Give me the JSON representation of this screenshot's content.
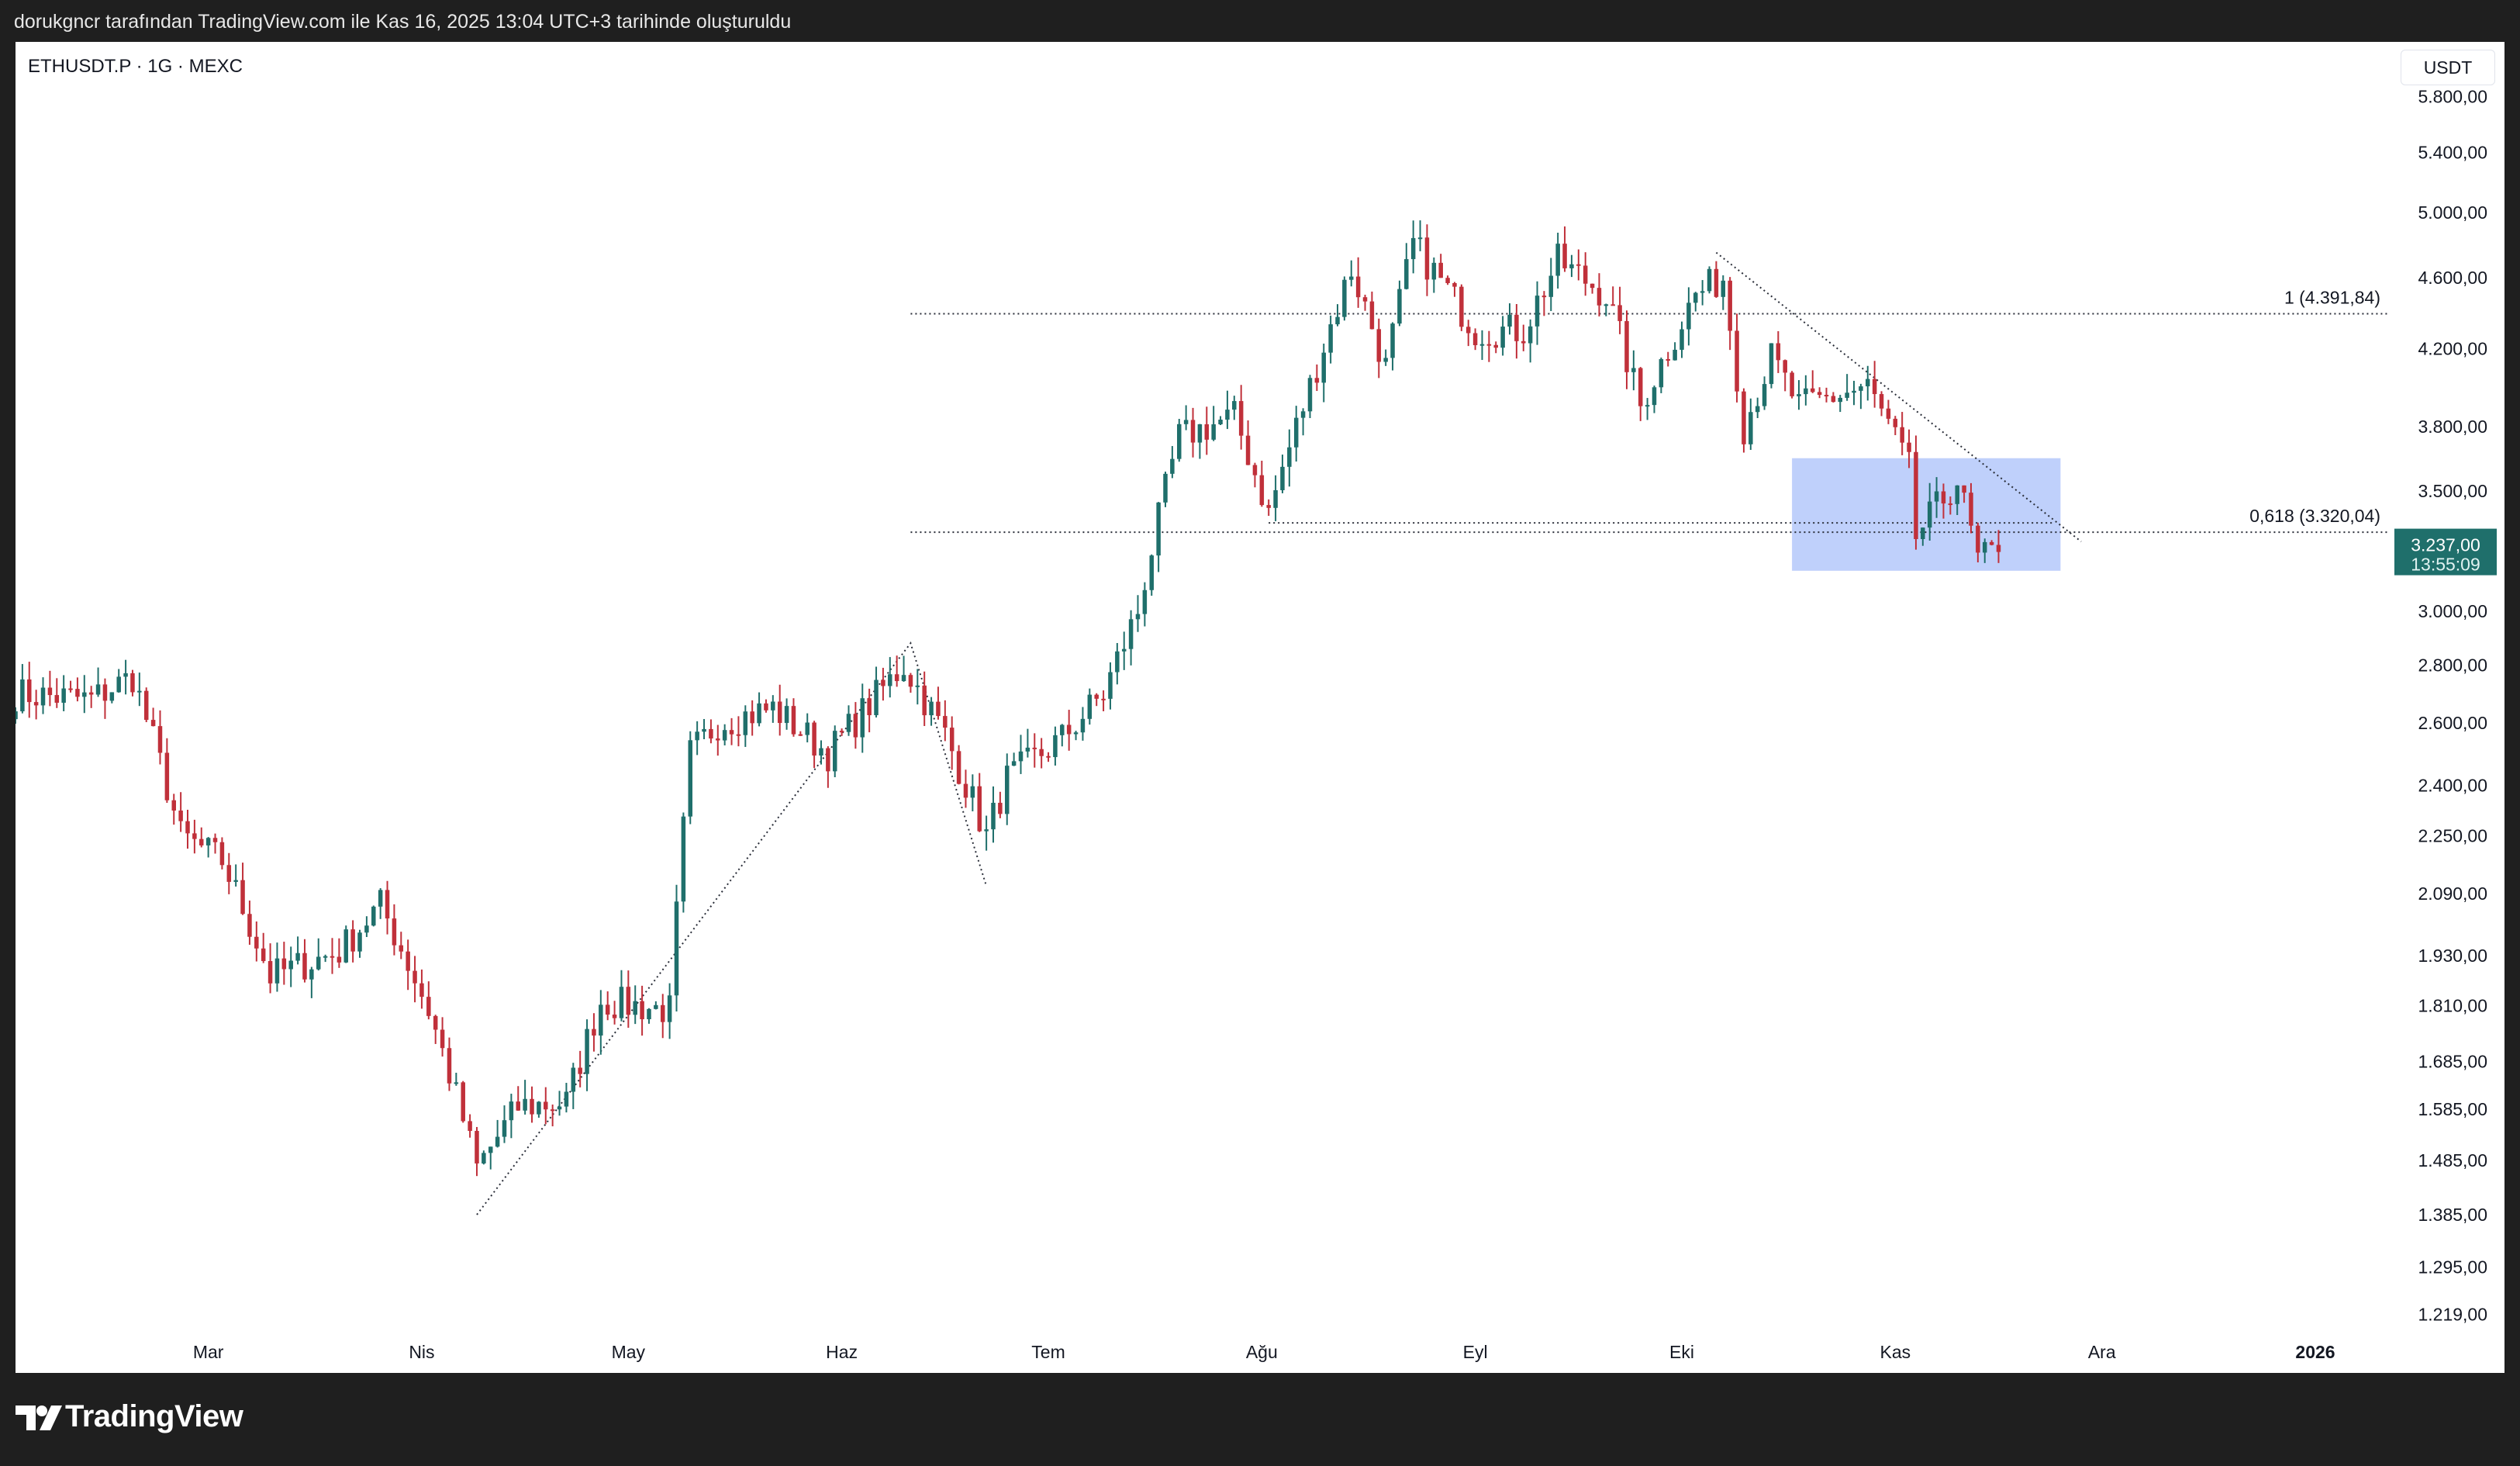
{
  "header": {
    "attribution": "dorukgncr tarafından TradingView.com ile Kas 16, 2025 13:04 UTC+3 tarihinde oluşturuldu"
  },
  "symbol": {
    "label": "ETHUSDT.P · 1G · MEXC"
  },
  "currency": {
    "label": "USDT"
  },
  "brand": {
    "name": "TradingView"
  },
  "colors": {
    "up": "#1f6f6b",
    "down": "#c0303a",
    "zone": "#bccdfb",
    "price_tag": "#1f6f6b",
    "grid_text": "#131722"
  },
  "chart_data": {
    "type": "candlestick",
    "scale": "log",
    "ylim": [
      1180,
      6000
    ],
    "xlim": [
      "2025-02-01",
      "2026-01-01"
    ],
    "x_tick_labels": [
      {
        "label": "Mar",
        "date": "2025-03-01"
      },
      {
        "label": "Nis",
        "date": "2025-04-01"
      },
      {
        "label": "May",
        "date": "2025-05-01"
      },
      {
        "label": "Haz",
        "date": "2025-06-01"
      },
      {
        "label": "Tem",
        "date": "2025-07-01"
      },
      {
        "label": "Ağu",
        "date": "2025-08-01"
      },
      {
        "label": "Eyl",
        "date": "2025-09-01"
      },
      {
        "label": "Eki",
        "date": "2025-10-01"
      },
      {
        "label": "Kas",
        "date": "2025-11-01"
      },
      {
        "label": "Ara",
        "date": "2025-12-01"
      },
      {
        "label": "2026",
        "date": "2026-01-01",
        "bold": true
      }
    ],
    "y_tick_labels": [
      {
        "label": "5.800,00",
        "value": 5800
      },
      {
        "label": "5.400,00",
        "value": 5400
      },
      {
        "label": "5.000,00",
        "value": 5000
      },
      {
        "label": "4.600,00",
        "value": 4600
      },
      {
        "label": "4.200,00",
        "value": 4200
      },
      {
        "label": "3.800,00",
        "value": 3800
      },
      {
        "label": "3.500,00",
        "value": 3500
      },
      {
        "label": "3.000,00",
        "value": 3000
      },
      {
        "label": "2.800,00",
        "value": 2800
      },
      {
        "label": "2.600,00",
        "value": 2600
      },
      {
        "label": "2.400,00",
        "value": 2400
      },
      {
        "label": "2.250,00",
        "value": 2250
      },
      {
        "label": "2.090,00",
        "value": 2090
      },
      {
        "label": "1.930,00",
        "value": 1930
      },
      {
        "label": "1.810,00",
        "value": 1810
      },
      {
        "label": "1.685,00",
        "value": 1685
      },
      {
        "label": "1.585,00",
        "value": 1585
      },
      {
        "label": "1.485,00",
        "value": 1485
      },
      {
        "label": "1.385,00",
        "value": 1385
      },
      {
        "label": "1.295,00",
        "value": 1295
      },
      {
        "label": "1.219,00",
        "value": 1219
      }
    ],
    "current_price": {
      "label": "3.237,00",
      "countdown": "13:55:09",
      "value": 3237
    },
    "fib_levels": [
      {
        "label": "1 (4.391,84)",
        "value": 4391.84,
        "from": "2025-06-11"
      },
      {
        "label": "0,618 (3.320,04)",
        "value": 3320.04,
        "from": "2025-06-11"
      }
    ],
    "zone": {
      "x0": "2025-10-17",
      "x1": "2025-11-25",
      "y0": 3160,
      "y1": 3650
    },
    "trendlines": [
      {
        "points": [
          [
            "2025-04-09",
            1385
          ],
          [
            "2025-06-11",
            2880
          ],
          [
            "2025-06-22",
            2110
          ]
        ]
      },
      {
        "points": [
          [
            "2025-10-06",
            4750
          ],
          [
            "2025-11-28",
            3280
          ]
        ]
      },
      {
        "points": [
          [
            "2025-08-02",
            3360
          ],
          [
            "2025-11-24",
            3360
          ]
        ]
      }
    ],
    "anchors": [
      {
        "date": "2025-02-01",
        "close": 2700
      },
      {
        "date": "2025-02-12",
        "close": 2680
      },
      {
        "date": "2025-02-18",
        "close": 2760
      },
      {
        "date": "2025-02-25",
        "close": 2250
      },
      {
        "date": "2025-03-03",
        "close": 2180
      },
      {
        "date": "2025-03-10",
        "close": 1880
      },
      {
        "date": "2025-03-20",
        "close": 1940
      },
      {
        "date": "2025-03-26",
        "close": 2060
      },
      {
        "date": "2025-04-02",
        "close": 1800
      },
      {
        "date": "2025-04-09",
        "close": 1470
      },
      {
        "date": "2025-04-15",
        "close": 1590
      },
      {
        "date": "2025-04-22",
        "close": 1600
      },
      {
        "date": "2025-04-27",
        "close": 1820
      },
      {
        "date": "2025-05-07",
        "close": 1800
      },
      {
        "date": "2025-05-10",
        "close": 2500
      },
      {
        "date": "2025-05-14",
        "close": 2600
      },
      {
        "date": "2025-05-22",
        "close": 2650
      },
      {
        "date": "2025-05-30",
        "close": 2500
      },
      {
        "date": "2025-06-10",
        "close": 2800
      },
      {
        "date": "2025-06-16",
        "close": 2560
      },
      {
        "date": "2025-06-22",
        "close": 2250
      },
      {
        "date": "2025-06-25",
        "close": 2420
      },
      {
        "date": "2025-07-03",
        "close": 2550
      },
      {
        "date": "2025-07-09",
        "close": 2700
      },
      {
        "date": "2025-07-14",
        "close": 3000
      },
      {
        "date": "2025-07-20",
        "close": 3750
      },
      {
        "date": "2025-07-28",
        "close": 3850
      },
      {
        "date": "2025-08-02",
        "close": 3400
      },
      {
        "date": "2025-08-08",
        "close": 4000
      },
      {
        "date": "2025-08-14",
        "close": 4650
      },
      {
        "date": "2025-08-19",
        "close": 4100
      },
      {
        "date": "2025-08-23",
        "close": 4800
      },
      {
        "date": "2025-09-01",
        "close": 4300
      },
      {
        "date": "2025-09-08",
        "close": 4300
      },
      {
        "date": "2025-09-13",
        "close": 4700
      },
      {
        "date": "2025-09-20",
        "close": 4500
      },
      {
        "date": "2025-09-25",
        "close": 3900
      },
      {
        "date": "2025-10-03",
        "close": 4500
      },
      {
        "date": "2025-10-07",
        "close": 4600
      },
      {
        "date": "2025-10-10",
        "close": 3800
      },
      {
        "date": "2025-10-14",
        "close": 4150
      },
      {
        "date": "2025-10-18",
        "close": 3900
      },
      {
        "date": "2025-10-28",
        "close": 4000
      },
      {
        "date": "2025-11-03",
        "close": 3600
      },
      {
        "date": "2025-11-04",
        "close": 3300
      },
      {
        "date": "2025-11-10",
        "close": 3550
      },
      {
        "date": "2025-11-13",
        "close": 3200
      },
      {
        "date": "2025-11-16",
        "close": 3237
      }
    ]
  }
}
